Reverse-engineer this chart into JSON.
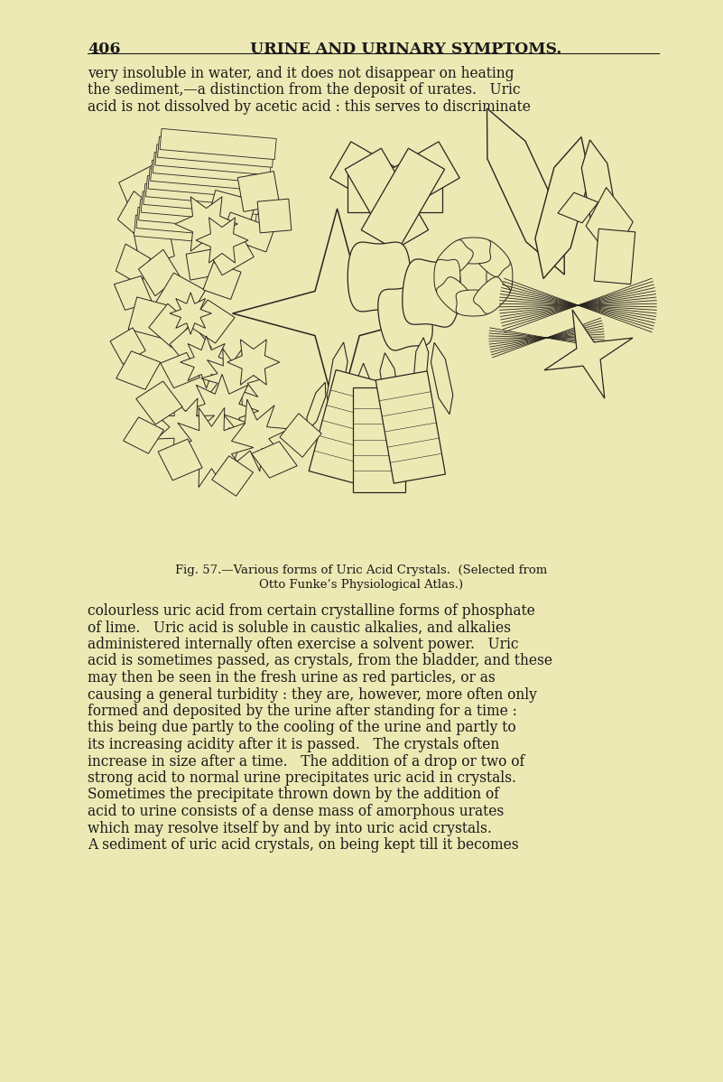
{
  "bg_color": "#ede9b4",
  "page_number": "406",
  "header_text": "URINE AND URINARY SYMPTOMS.",
  "header_fontsize": 12.5,
  "body_text_fontsize": 11.2,
  "caption_fontsize": 9.5,
  "top_paragraphs": [
    "very insoluble in water, and it does not disappear on heating",
    "the sediment,—a distinction from the deposit of urates.   Uric",
    "acid is not dissolved by acetic acid : this serves to discriminate"
  ],
  "caption_line1": "Fig. 57.—Various forms of Uric Acid Crystals.  (Selected from",
  "caption_line2": "Otto Funke’s Physiological Atlas.)",
  "bottom_paragraphs": [
    "colourless uric acid from certain crystalline forms of phosphate",
    "of lime.   Uric acid is soluble in caustic alkalies, and alkalies",
    "administered internally often exercise a solvent power.   Uric",
    "acid is sometimes passed, as crystals, from the bladder, and these",
    "may then be seen in the fresh urine as red particles, or as",
    "causing a general turbidity : they are, however, more often only",
    "formed and deposited by the urine after standing for a time :",
    "this being due partly to the cooling of the urine and partly to",
    "its increasing acidity after it is passed.   The crystals often",
    "increase in size after a time.   The addition of a drop or two of",
    "strong acid to normal urine precipitates uric acid in crystals.",
    "Sometimes the precipitate thrown down by the addition of",
    "acid to urine consists of a dense mass of amorphous urates",
    "which may resolve itself by and by into uric acid crystals.",
    "A sediment of uric acid crystals, on being kept till it becomes"
  ],
  "text_color": "#1a1a1a",
  "crystal_color": "#2a2520"
}
